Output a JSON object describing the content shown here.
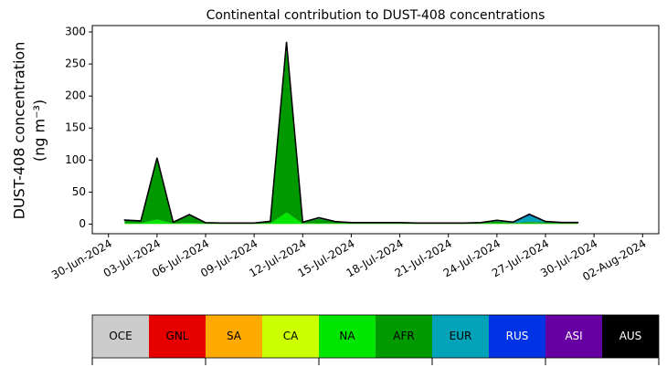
{
  "chart_data": {
    "type": "stacked-area",
    "title": "Continental contribution to DUST-408 concentrations",
    "ylabel": [
      "DUST-408 concentration",
      "(ng m⁻³)"
    ],
    "x": [
      "01-Jul-2024",
      "02-Jul-2024",
      "03-Jul-2024",
      "04-Jul-2024",
      "05-Jul-2024",
      "06-Jul-2024",
      "07-Jul-2024",
      "08-Jul-2024",
      "09-Jul-2024",
      "10-Jul-2024",
      "11-Jul-2024",
      "12-Jul-2024",
      "13-Jul-2024",
      "14-Jul-2024",
      "15-Jul-2024",
      "16-Jul-2024",
      "17-Jul-2024",
      "18-Jul-2024",
      "19-Jul-2024",
      "20-Jul-2024",
      "21-Jul-2024",
      "22-Jul-2024",
      "23-Jul-2024",
      "24-Jul-2024",
      "25-Jul-2024",
      "26-Jul-2024",
      "27-Jul-2024",
      "28-Jul-2024",
      "29-Jul-2024"
    ],
    "xlim": [
      "29-Jun-2024",
      "03-Aug-2024"
    ],
    "xticks": [
      "30-Jun-2024",
      "03-Jul-2024",
      "06-Jul-2024",
      "09-Jul-2024",
      "12-Jul-2024",
      "15-Jul-2024",
      "18-Jul-2024",
      "21-Jul-2024",
      "24-Jul-2024",
      "27-Jul-2024",
      "30-Jul-2024",
      "02-Aug-2024"
    ],
    "ylim": [
      -15,
      310
    ],
    "yticks": [
      0,
      50,
      100,
      150,
      200,
      250,
      300
    ],
    "series": [
      {
        "name": "OCE",
        "color": "#cccccc",
        "values": [
          0,
          0,
          0,
          0,
          0,
          0,
          0,
          0,
          0,
          0,
          0,
          0,
          0,
          0,
          0,
          0,
          0,
          0,
          0,
          0,
          0,
          0,
          0,
          0,
          0,
          0,
          0,
          0,
          0
        ]
      },
      {
        "name": "GNL",
        "color": "#e60000",
        "values": [
          0,
          0,
          0,
          0,
          0,
          0,
          0,
          0,
          0,
          0,
          0,
          0,
          0,
          0,
          0,
          0,
          0,
          0,
          0,
          0,
          0,
          0,
          0,
          0,
          0,
          0,
          0,
          0,
          0
        ]
      },
      {
        "name": "SA",
        "color": "#ffaa00",
        "values": [
          0,
          0,
          0,
          0,
          0,
          0,
          0,
          0,
          0,
          0,
          0,
          0,
          0,
          0,
          0,
          0,
          0,
          0,
          0,
          0,
          0,
          0,
          0,
          0,
          0,
          0,
          0,
          0,
          0
        ]
      },
      {
        "name": "CA",
        "color": "#ccff00",
        "values": [
          0.3,
          0.3,
          0.3,
          0.3,
          0.3,
          0.3,
          0.3,
          0.3,
          0.3,
          0.3,
          0.3,
          0.3,
          0.3,
          0.3,
          0.3,
          0.3,
          0.3,
          0.3,
          0.3,
          0.3,
          0.3,
          0.3,
          0.3,
          0.3,
          0.3,
          0.3,
          0.3,
          0.3,
          0.3
        ]
      },
      {
        "name": "NA",
        "color": "#00e600",
        "values": [
          1,
          1,
          7,
          0.5,
          2,
          0.3,
          0.3,
          0.3,
          0.3,
          0.5,
          18,
          0.5,
          1,
          0.5,
          0.5,
          0.5,
          0.5,
          0.5,
          0.3,
          0.3,
          0.3,
          0.3,
          0.5,
          1,
          0.5,
          1,
          0.5,
          0.5,
          0.5
        ]
      },
      {
        "name": "AFR",
        "color": "#009900",
        "values": [
          4,
          3,
          93,
          1.5,
          11,
          1,
          0.5,
          0.5,
          0.5,
          3,
          255,
          1.5,
          7,
          2.5,
          1,
          1,
          1,
          1,
          0.5,
          0.5,
          0.5,
          0.5,
          1,
          3,
          1,
          2,
          2,
          1,
          1
        ]
      },
      {
        "name": "EUR",
        "color": "#00a3b8",
        "values": [
          0.5,
          0.3,
          2,
          0.3,
          1,
          0.2,
          0.2,
          0.2,
          0.2,
          0.2,
          6,
          0.3,
          1,
          0.3,
          0.2,
          0.2,
          0.2,
          0.2,
          0.2,
          0.2,
          0.2,
          0.2,
          0.2,
          1,
          0.8,
          10,
          0.8,
          0.3,
          0.3
        ]
      },
      {
        "name": "RUS",
        "color": "#0033e6",
        "values": [
          0.2,
          0.2,
          1,
          0.2,
          0.3,
          0.2,
          0.2,
          0.2,
          0.2,
          0.2,
          5,
          0.2,
          0.5,
          0.2,
          0.2,
          0.2,
          0.2,
          0.2,
          0.2,
          0.2,
          0.2,
          0.2,
          0.2,
          0.5,
          0.3,
          2,
          0.3,
          0.2,
          0.2
        ]
      },
      {
        "name": "ASI",
        "color": "#6600a3",
        "values": [
          0.1,
          0.1,
          0.1,
          0.1,
          0.1,
          0.1,
          0.1,
          0.1,
          0.1,
          0.1,
          0.1,
          0.1,
          0.1,
          0.1,
          0.1,
          0.1,
          0.1,
          0.1,
          0.1,
          0.1,
          0.1,
          0.1,
          0.1,
          0.1,
          0.1,
          0.1,
          0.1,
          0.1,
          0.1
        ]
      },
      {
        "name": "AUS",
        "color": "#000000",
        "values": [
          0.2,
          0.2,
          0.2,
          0.2,
          0.2,
          0.2,
          0.2,
          0.2,
          0.2,
          0.2,
          0.2,
          0.2,
          0.2,
          0.2,
          0.2,
          0.2,
          0.2,
          0.2,
          0.2,
          0.2,
          0.2,
          0.2,
          0.2,
          0.2,
          0.2,
          0.2,
          0.2,
          0.2,
          0.2
        ]
      }
    ]
  }
}
